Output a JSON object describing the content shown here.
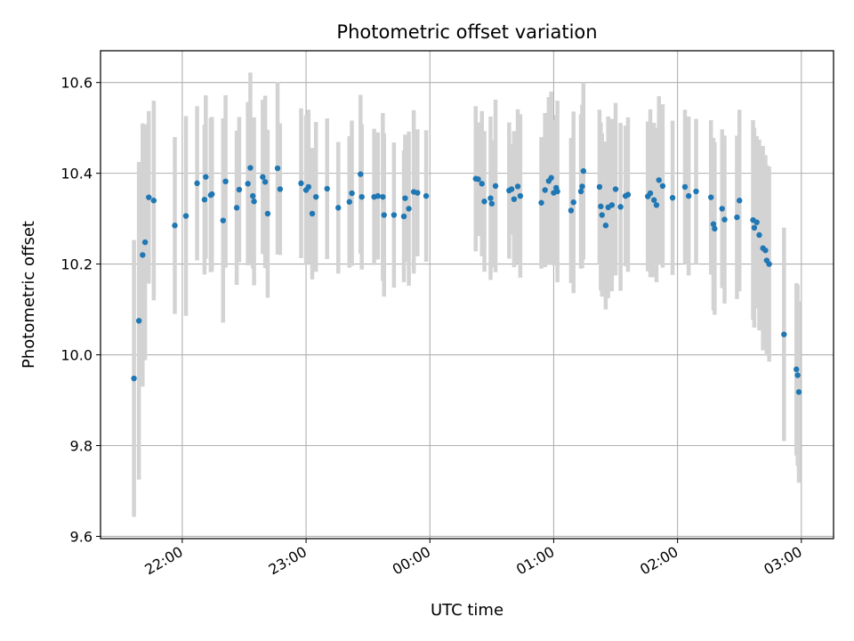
{
  "chart_data": {
    "type": "scatter",
    "title": "Photometric offset variation",
    "xlabel": "UTC time",
    "ylabel": "Photometric offset",
    "x_unit": "UTC time, hours from 00:00",
    "xlim": [
      -2.66,
      3.26
    ],
    "ylim": [
      9.595,
      10.67
    ],
    "x_ticks": [
      {
        "value": -2,
        "label": "22:00"
      },
      {
        "value": -1,
        "label": "23:00"
      },
      {
        "value": 0,
        "label": "00:00"
      },
      {
        "value": 1,
        "label": "01:00"
      },
      {
        "value": 2,
        "label": "02:00"
      },
      {
        "value": 3,
        "label": "03:00"
      }
    ],
    "y_ticks": [
      {
        "value": 9.6,
        "label": "9.6"
      },
      {
        "value": 9.8,
        "label": "9.8"
      },
      {
        "value": 10.0,
        "label": "10.0"
      },
      {
        "value": 10.2,
        "label": "10.2"
      },
      {
        "value": 10.4,
        "label": "10.4"
      },
      {
        "value": 10.6,
        "label": "10.6"
      }
    ],
    "grid": true,
    "point_color": "#1f77b4",
    "errorbar_color": "#d3d3d3",
    "points": [
      [
        -2.39,
        9.948,
        0.305
      ],
      [
        -2.35,
        10.075,
        0.35
      ],
      [
        -2.32,
        10.22,
        0.29
      ],
      [
        -2.3,
        10.248,
        0.26
      ],
      [
        -2.27,
        10.347,
        0.19
      ],
      [
        -2.23,
        10.34,
        0.22
      ],
      [
        -2.06,
        10.285,
        0.195
      ],
      [
        -1.97,
        10.306,
        0.22
      ],
      [
        -1.88,
        10.378,
        0.17
      ],
      [
        -1.82,
        10.342,
        0.165
      ],
      [
        -1.81,
        10.392,
        0.18
      ],
      [
        -1.77,
        10.352,
        0.17
      ],
      [
        -1.76,
        10.354,
        0.17
      ],
      [
        -1.67,
        10.296,
        0.225
      ],
      [
        -1.65,
        10.382,
        0.19
      ],
      [
        -1.56,
        10.324,
        0.17
      ],
      [
        -1.54,
        10.364,
        0.16
      ],
      [
        -1.47,
        10.377,
        0.18
      ],
      [
        -1.45,
        10.412,
        0.21
      ],
      [
        -1.43,
        10.35,
        0.16
      ],
      [
        -1.42,
        10.338,
        0.185
      ],
      [
        -1.35,
        10.392,
        0.17
      ],
      [
        -1.33,
        10.381,
        0.19
      ],
      [
        -1.31,
        10.311,
        0.185
      ],
      [
        -1.23,
        10.411,
        0.19
      ],
      [
        -1.21,
        10.365,
        0.145
      ],
      [
        -1.04,
        10.378,
        0.165
      ],
      [
        -1.0,
        10.363,
        0.165
      ],
      [
        -0.98,
        10.37,
        0.17
      ],
      [
        -0.95,
        10.311,
        0.145
      ],
      [
        -0.92,
        10.348,
        0.165
      ],
      [
        -0.83,
        10.366,
        0.155
      ],
      [
        -0.74,
        10.324,
        0.145
      ],
      [
        -0.65,
        10.337,
        0.145
      ],
      [
        -0.63,
        10.356,
        0.16
      ],
      [
        -0.56,
        10.398,
        0.175
      ],
      [
        -0.55,
        10.348,
        0.16
      ],
      [
        -0.45,
        10.348,
        0.15
      ],
      [
        -0.42,
        10.35,
        0.14
      ],
      [
        -0.38,
        10.348,
        0.185
      ],
      [
        -0.37,
        10.308,
        0.18
      ],
      [
        -0.29,
        10.308,
        0.16
      ],
      [
        -0.21,
        10.305,
        0.145
      ],
      [
        -0.2,
        10.345,
        0.14
      ],
      [
        -0.17,
        10.322,
        0.17
      ],
      [
        -0.13,
        10.359,
        0.18
      ],
      [
        -0.1,
        10.357,
        0.14
      ],
      [
        -0.03,
        10.35,
        0.145
      ],
      [
        0.37,
        10.388,
        0.16
      ],
      [
        0.39,
        10.387,
        0.125
      ],
      [
        0.42,
        10.377,
        0.16
      ],
      [
        0.44,
        10.338,
        0.155
      ],
      [
        0.49,
        10.345,
        0.18
      ],
      [
        0.5,
        10.333,
        0.14
      ],
      [
        0.53,
        10.372,
        0.19
      ],
      [
        0.64,
        10.362,
        0.15
      ],
      [
        0.66,
        10.365,
        0.1
      ],
      [
        0.68,
        10.343,
        0.15
      ],
      [
        0.71,
        10.371,
        0.17
      ],
      [
        0.73,
        10.35,
        0.18
      ],
      [
        0.9,
        10.335,
        0.145
      ],
      [
        0.93,
        10.363,
        0.17
      ],
      [
        0.96,
        10.383,
        0.185
      ],
      [
        0.98,
        10.39,
        0.19
      ],
      [
        1.0,
        10.357,
        0.16
      ],
      [
        1.02,
        10.368,
        0.16
      ],
      [
        1.03,
        10.36,
        0.2
      ],
      [
        1.14,
        10.318,
        0.16
      ],
      [
        1.16,
        10.336,
        0.2
      ],
      [
        1.22,
        10.36,
        0.17
      ],
      [
        1.23,
        10.371,
        0.18
      ],
      [
        1.24,
        10.405,
        0.195
      ],
      [
        1.37,
        10.37,
        0.17
      ],
      [
        1.38,
        10.327,
        0.185
      ],
      [
        1.39,
        10.308,
        0.18
      ],
      [
        1.42,
        10.285,
        0.185
      ],
      [
        1.44,
        10.325,
        0.2
      ],
      [
        1.47,
        10.33,
        0.19
      ],
      [
        1.5,
        10.365,
        0.19
      ],
      [
        1.54,
        10.326,
        0.185
      ],
      [
        1.58,
        10.35,
        0.155
      ],
      [
        1.6,
        10.353,
        0.17
      ],
      [
        1.76,
        10.349,
        0.165
      ],
      [
        1.78,
        10.356,
        0.185
      ],
      [
        1.81,
        10.341,
        0.17
      ],
      [
        1.83,
        10.33,
        0.17
      ],
      [
        1.85,
        10.385,
        0.185
      ],
      [
        1.88,
        10.372,
        0.18
      ],
      [
        1.96,
        10.346,
        0.17
      ],
      [
        2.06,
        10.37,
        0.17
      ],
      [
        2.09,
        10.35,
        0.175
      ],
      [
        2.15,
        10.36,
        0.16
      ],
      [
        2.27,
        10.347,
        0.17
      ],
      [
        2.29,
        10.288,
        0.19
      ],
      [
        2.3,
        10.278,
        0.19
      ],
      [
        2.36,
        10.322,
        0.175
      ],
      [
        2.38,
        10.298,
        0.185
      ],
      [
        2.48,
        10.303,
        0.18
      ],
      [
        2.5,
        10.34,
        0.2
      ],
      [
        2.61,
        10.297,
        0.22
      ],
      [
        2.62,
        10.28,
        0.22
      ],
      [
        2.64,
        10.292,
        0.19
      ],
      [
        2.66,
        10.264,
        0.21
      ],
      [
        2.69,
        10.235,
        0.225
      ],
      [
        2.71,
        10.23,
        0.21
      ],
      [
        2.72,
        10.208,
        0.21
      ],
      [
        2.74,
        10.2,
        0.215
      ],
      [
        2.86,
        10.045,
        0.235
      ],
      [
        2.96,
        9.968,
        0.19
      ],
      [
        2.97,
        9.955,
        0.2
      ],
      [
        2.98,
        9.918,
        0.2
      ]
    ]
  }
}
